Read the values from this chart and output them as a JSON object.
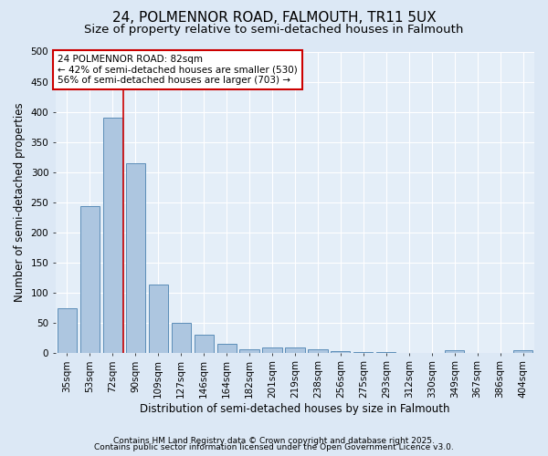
{
  "title_line1": "24, POLMENNOR ROAD, FALMOUTH, TR11 5UX",
  "title_line2": "Size of property relative to semi-detached houses in Falmouth",
  "xlabel": "Distribution of semi-detached houses by size in Falmouth",
  "ylabel": "Number of semi-detached properties",
  "categories": [
    "35sqm",
    "53sqm",
    "72sqm",
    "90sqm",
    "109sqm",
    "127sqm",
    "146sqm",
    "164sqm",
    "182sqm",
    "201sqm",
    "219sqm",
    "238sqm",
    "256sqm",
    "275sqm",
    "293sqm",
    "312sqm",
    "330sqm",
    "349sqm",
    "367sqm",
    "386sqm",
    "404sqm"
  ],
  "values": [
    74,
    243,
    390,
    315,
    113,
    50,
    30,
    15,
    6,
    8,
    9,
    5,
    2,
    1,
    1,
    0,
    0,
    4,
    0,
    0,
    4
  ],
  "bar_color": "#adc6e0",
  "bar_edge_color": "#5b8db8",
  "red_line_color": "#cc0000",
  "annotation_line1": "24 POLMENNOR ROAD: 82sqm",
  "annotation_line2": "← 42% of semi-detached houses are smaller (530)",
  "annotation_line3": "56% of semi-detached houses are larger (703) →",
  "annotation_box_color": "#ffffff",
  "annotation_box_edge": "#cc0000",
  "ylim": [
    0,
    500
  ],
  "yticks": [
    0,
    50,
    100,
    150,
    200,
    250,
    300,
    350,
    400,
    450,
    500
  ],
  "footnote1": "Contains HM Land Registry data © Crown copyright and database right 2025.",
  "footnote2": "Contains public sector information licensed under the Open Government Licence v3.0.",
  "bg_color": "#dce8f5",
  "plot_bg_color": "#e4eef8",
  "grid_color": "#ffffff",
  "title_fontsize": 11,
  "subtitle_fontsize": 9.5,
  "label_fontsize": 8.5,
  "tick_fontsize": 7.5,
  "annotation_fontsize": 7.5,
  "footnote_fontsize": 6.5
}
